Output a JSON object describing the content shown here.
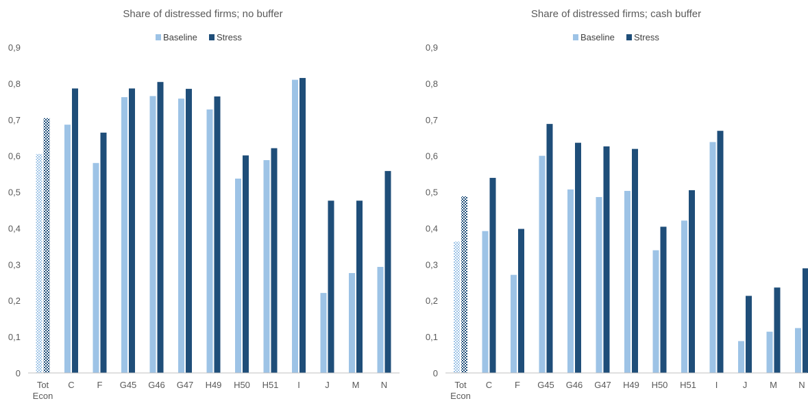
{
  "colors": {
    "baseline": "#9dc3e6",
    "stress": "#1f4e79",
    "text": "#595959",
    "axis": "#bfbfbf"
  },
  "chart_data": [
    {
      "type": "bar",
      "title": "Share of distressed firms; no buffer",
      "legend": [
        "Baseline",
        "Stress"
      ],
      "legend_position": "top",
      "categories": [
        [
          "Tot",
          "Econ"
        ],
        [
          "C"
        ],
        [
          "F"
        ],
        [
          "G45"
        ],
        [
          "G46"
        ],
        [
          "G47"
        ],
        [
          "H49"
        ],
        [
          "H50"
        ],
        [
          "H51"
        ],
        [
          "I"
        ],
        [
          "J"
        ],
        [
          "M"
        ],
        [
          "N"
        ]
      ],
      "y_ticks": [
        "0",
        "0,1",
        "0,2",
        "0,3",
        "0,4",
        "0,5",
        "0,6",
        "0,7",
        "0,8",
        "0,9"
      ],
      "ylim": [
        0,
        0.9
      ],
      "grid": false,
      "patterned_first_category": true,
      "series": [
        {
          "name": "Baseline",
          "values": [
            0.605,
            0.686,
            0.58,
            0.762,
            0.765,
            0.758,
            0.728,
            0.537,
            0.588,
            0.81,
            0.221,
            0.276,
            0.293
          ]
        },
        {
          "name": "Stress",
          "values": [
            0.704,
            0.786,
            0.664,
            0.786,
            0.804,
            0.785,
            0.764,
            0.601,
            0.621,
            0.815,
            0.476,
            0.476,
            0.558
          ]
        }
      ]
    },
    {
      "type": "bar",
      "title": "Share of distressed firms; cash buffer",
      "legend": [
        "Baseline",
        "Stress"
      ],
      "legend_position": "top",
      "categories": [
        [
          "Tot",
          "Econ"
        ],
        [
          "C"
        ],
        [
          "F"
        ],
        [
          "G45"
        ],
        [
          "G46"
        ],
        [
          "G47"
        ],
        [
          "H49"
        ],
        [
          "H50"
        ],
        [
          "H51"
        ],
        [
          "I"
        ],
        [
          "J"
        ],
        [
          "M"
        ],
        [
          "N"
        ]
      ],
      "y_ticks": [
        "0",
        "0,1",
        "0,2",
        "0,3",
        "0,4",
        "0,5",
        "0,6",
        "0,7",
        "0,8",
        "0,9"
      ],
      "ylim": [
        0,
        0.9
      ],
      "grid": false,
      "patterned_first_category": true,
      "series": [
        {
          "name": "Baseline",
          "values": [
            0.363,
            0.392,
            0.271,
            0.6,
            0.507,
            0.486,
            0.503,
            0.339,
            0.421,
            0.638,
            0.088,
            0.114,
            0.124
          ]
        },
        {
          "name": "Stress",
          "values": [
            0.488,
            0.539,
            0.398,
            0.688,
            0.636,
            0.626,
            0.619,
            0.404,
            0.505,
            0.669,
            0.213,
            0.236,
            0.289
          ]
        }
      ]
    }
  ]
}
